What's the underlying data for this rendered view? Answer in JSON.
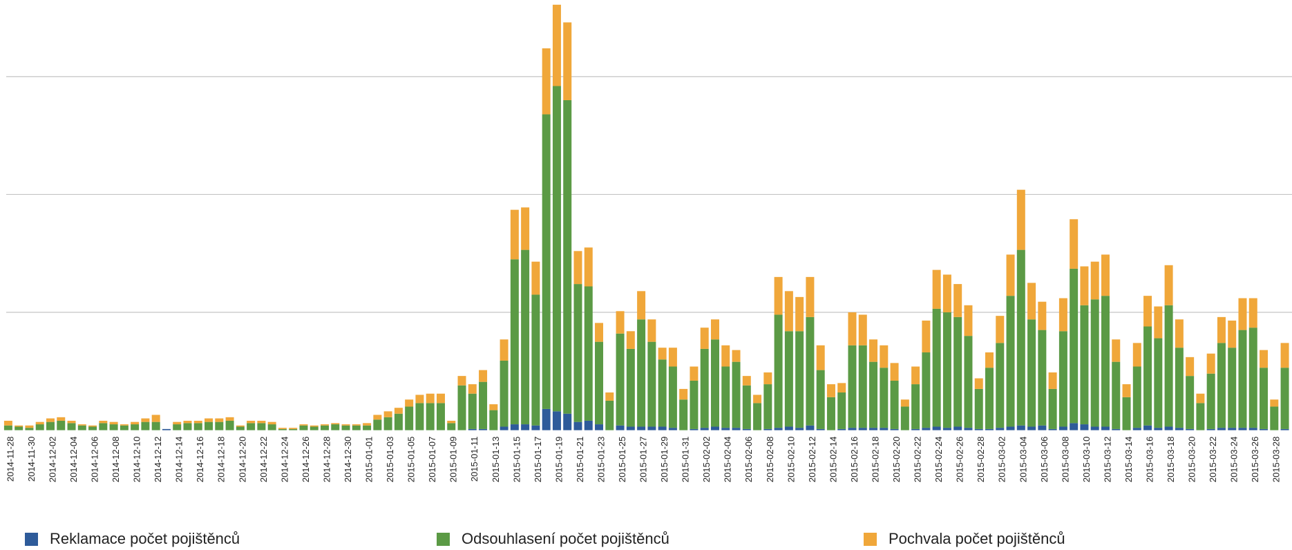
{
  "chart_data": {
    "type": "stacked_bar",
    "categories": [
      "2014-11-28",
      null,
      "2014-11-30",
      null,
      "2014-12-02",
      null,
      "2014-12-04",
      null,
      "2014-12-06",
      null,
      "2014-12-08",
      null,
      "2014-12-10",
      null,
      "2014-12-12",
      null,
      "2014-12-14",
      null,
      "2014-12-16",
      null,
      "2014-12-18",
      null,
      "2014-12-20",
      null,
      "2014-12-22",
      null,
      "2014-12-24",
      null,
      "2014-12-26",
      null,
      "2014-12-28",
      null,
      "2014-12-30",
      null,
      "2015-01-01",
      null,
      "2015-01-03",
      null,
      "2015-01-05",
      null,
      "2015-01-07",
      null,
      "2015-01-09",
      null,
      "2015-01-11",
      null,
      "2015-01-13",
      null,
      "2015-01-15",
      null,
      "2015-01-17",
      null,
      "2015-01-19",
      null,
      "2015-01-21",
      null,
      "2015-01-23",
      null,
      "2015-01-25",
      null,
      "2015-01-27",
      null,
      "2015-01-29",
      null,
      "2015-01-31",
      null,
      "2015-02-02",
      null,
      "2015-02-04",
      null,
      "2015-02-06",
      null,
      "2015-02-08",
      null,
      "2015-02-10",
      null,
      "2015-02-12",
      null,
      "2015-02-14",
      null,
      "2015-02-16",
      null,
      "2015-02-18",
      null,
      "2015-02-20",
      null,
      "2015-02-22",
      null,
      "2015-02-24",
      null,
      "2015-02-26",
      null,
      "2015-02-28",
      null,
      "2015-03-02",
      null,
      "2015-03-04",
      null,
      "2015-03-06",
      null,
      "2015-03-08",
      null,
      "2015-03-10",
      null,
      "2015-03-12",
      null,
      "2015-03-14",
      null,
      "2015-03-16",
      null,
      "2015-03-18",
      null,
      "2015-03-20",
      null,
      "2015-03-22",
      null,
      "2015-03-24",
      null,
      "2015-03-26",
      null,
      "2015-03-28",
      null
    ],
    "series": [
      {
        "name": "Reklamace počet pojištěnců",
        "color": "#2e5b9a",
        "values": [
          0,
          0,
          0,
          0,
          0,
          0,
          0,
          0,
          0,
          0,
          0,
          0,
          0,
          0,
          0,
          1,
          0,
          0,
          0,
          0,
          0,
          0,
          0,
          0,
          0,
          0,
          0,
          0,
          0,
          0,
          0,
          0,
          0,
          0,
          0,
          0,
          0,
          0,
          0,
          0,
          0,
          0,
          0,
          0,
          1,
          1,
          0,
          3,
          5,
          5,
          4,
          18,
          16,
          14,
          7,
          8,
          5,
          0,
          4,
          3,
          3,
          3,
          3,
          2,
          0,
          1,
          2,
          3,
          2,
          2,
          1,
          0,
          1,
          2,
          3,
          2,
          4,
          1,
          0,
          1,
          2,
          2,
          2,
          2,
          1,
          0,
          1,
          2,
          3,
          2,
          3,
          2,
          1,
          1,
          2,
          3,
          4,
          3,
          4,
          1,
          3,
          6,
          5,
          3,
          3,
          1,
          0,
          2,
          4,
          2,
          3,
          2,
          1,
          0,
          1,
          2,
          2,
          2,
          2,
          1,
          0,
          1
        ]
      },
      {
        "name": "Odsouhlasení počet pojištěnců",
        "color": "#5b9a45",
        "values": [
          4,
          3,
          2,
          5,
          7,
          8,
          6,
          4,
          3,
          6,
          5,
          4,
          5,
          7,
          7,
          0,
          5,
          6,
          6,
          7,
          7,
          8,
          3,
          6,
          6,
          5,
          1,
          1,
          4,
          3,
          4,
          5,
          4,
          4,
          4,
          9,
          11,
          14,
          20,
          23,
          23,
          23,
          6,
          38,
          30,
          40,
          17,
          56,
          140,
          148,
          111,
          250,
          276,
          266,
          117,
          114,
          70,
          25,
          78,
          66,
          91,
          72,
          57,
          52,
          26,
          41,
          67,
          74,
          52,
          56,
          37,
          23,
          38,
          96,
          81,
          82,
          92,
          50,
          28,
          31,
          70,
          70,
          56,
          51,
          41,
          20,
          38,
          64,
          100,
          98,
          93,
          78,
          34,
          52,
          72,
          111,
          149,
          91,
          81,
          34,
          81,
          131,
          101,
          108,
          111,
          57,
          28,
          52,
          84,
          76,
          103,
          68,
          45,
          23,
          47,
          72,
          68,
          83,
          85,
          52,
          20,
          52
        ]
      },
      {
        "name": "Pochvala počet pojištěnců",
        "color": "#f0a73a",
        "values": [
          4,
          1,
          2,
          2,
          3,
          3,
          2,
          1,
          1,
          2,
          2,
          1,
          2,
          3,
          6,
          0,
          2,
          2,
          2,
          3,
          3,
          3,
          1,
          2,
          2,
          2,
          1,
          1,
          1,
          1,
          1,
          1,
          1,
          1,
          2,
          4,
          5,
          5,
          6,
          7,
          8,
          8,
          2,
          8,
          8,
          10,
          5,
          18,
          42,
          36,
          28,
          56,
          69,
          66,
          28,
          33,
          16,
          7,
          19,
          15,
          24,
          19,
          10,
          16,
          9,
          12,
          18,
          17,
          18,
          10,
          8,
          7,
          10,
          32,
          34,
          29,
          34,
          21,
          11,
          8,
          28,
          26,
          19,
          19,
          15,
          6,
          15,
          27,
          33,
          32,
          28,
          26,
          9,
          13,
          23,
          35,
          51,
          31,
          24,
          14,
          28,
          42,
          33,
          32,
          35,
          19,
          11,
          20,
          26,
          27,
          34,
          24,
          16,
          8,
          17,
          22,
          23,
          27,
          25,
          15,
          6,
          21
        ]
      }
    ],
    "ylim": [
      0,
      365
    ],
    "yticks": [
      100,
      200,
      300
    ],
    "grid": true
  }
}
